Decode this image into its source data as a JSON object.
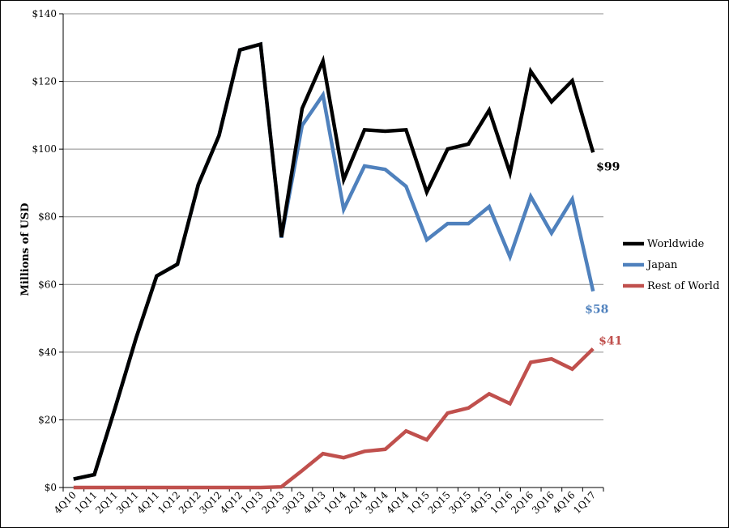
{
  "chart_data": {
    "type": "line",
    "title": "",
    "xlabel": "",
    "ylabel": "Millions of USD",
    "ylim": [
      0,
      140
    ],
    "yticks": [
      0,
      20,
      40,
      60,
      80,
      100,
      120,
      140
    ],
    "ytick_labels": [
      "$0",
      "$20",
      "$40",
      "$60",
      "$80",
      "$100",
      "$120",
      "$140"
    ],
    "grid": true,
    "legend_position": "right",
    "categories": [
      "4Q10",
      "1Q11",
      "2Q11",
      "3Q11",
      "4Q11",
      "1Q12",
      "2Q12",
      "3Q12",
      "4Q12",
      "1Q13",
      "2Q13",
      "3Q13",
      "4Q13",
      "1Q14",
      "2Q14",
      "3Q14",
      "4Q14",
      "1Q15",
      "2Q15",
      "3Q15",
      "4Q15",
      "1Q16",
      "2Q16",
      "3Q16",
      "4Q16",
      "1Q17"
    ],
    "series": [
      {
        "name": "Worldwide",
        "color": "#000000",
        "values": [
          2.5,
          3.8,
          23.5,
          44,
          62.5,
          66,
          89.5,
          104,
          129.3,
          131,
          74,
          112,
          126,
          91,
          105.7,
          105.3,
          105.7,
          87.3,
          100,
          101.5,
          111.5,
          93,
          123,
          114,
          120.2,
          99
        ],
        "end_label": "$99"
      },
      {
        "name": "Japan",
        "color": "#4f81bd",
        "values": [
          2.5,
          3.8,
          23.5,
          44,
          62.5,
          66,
          89.5,
          104,
          129.3,
          131,
          73.8,
          107,
          116,
          82.2,
          95,
          94,
          89,
          73.2,
          78,
          78,
          83,
          68.2,
          86,
          75.2,
          85.2,
          58
        ],
        "end_label": "$58"
      },
      {
        "name": "Rest of World",
        "color": "#c0504d",
        "values": [
          0,
          0,
          0,
          0,
          0,
          0,
          0,
          0,
          0,
          0,
          0.2,
          5,
          10,
          8.8,
          10.7,
          11.3,
          16.7,
          14.1,
          22,
          23.5,
          27.7,
          24.8,
          37,
          38,
          35,
          41
        ],
        "end_label": "$41"
      }
    ]
  }
}
